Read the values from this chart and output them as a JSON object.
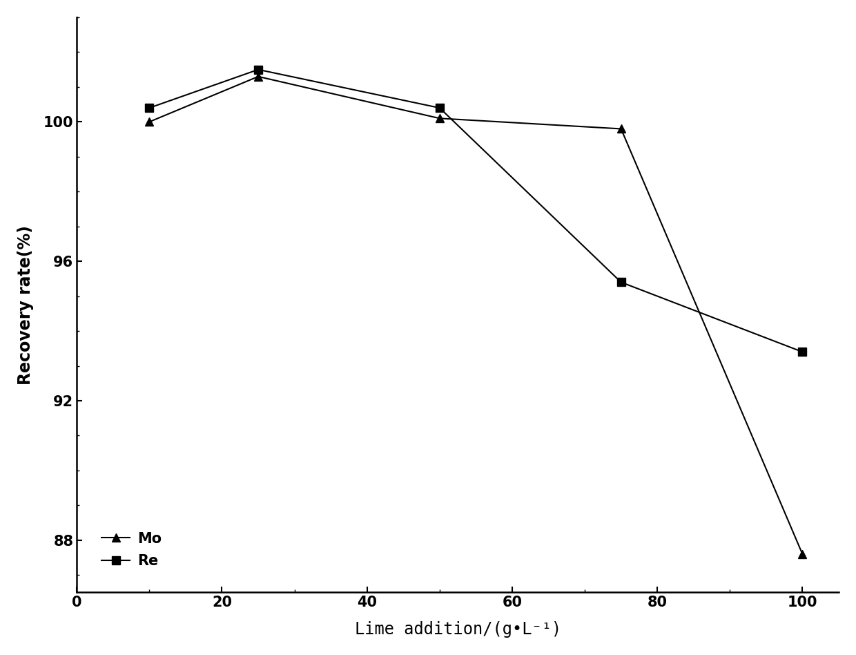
{
  "Mo_x": [
    10,
    25,
    50,
    75,
    100
  ],
  "Mo_y": [
    100.0,
    101.3,
    100.1,
    99.8,
    87.6
  ],
  "Re_x": [
    10,
    25,
    50,
    75,
    100
  ],
  "Re_y": [
    100.4,
    101.5,
    100.4,
    95.4,
    93.4
  ],
  "xlabel": "Lime addition/(g•L⁻¹)",
  "ylabel": "Recovery rate(%)",
  "xlim": [
    0,
    105
  ],
  "ylim": [
    86.5,
    103.0
  ],
  "yticks": [
    88,
    92,
    96,
    100
  ],
  "xticks": [
    0,
    20,
    40,
    60,
    80,
    100
  ],
  "Mo_label": "Mo",
  "Re_label": "Re",
  "line_color": "#000000",
  "marker_Mo": "^",
  "marker_Re": "s",
  "markersize": 9,
  "linewidth": 1.5,
  "legend_fontsize": 15,
  "axis_label_fontsize": 17,
  "tick_fontsize": 15,
  "figsize": [
    12.4,
    9.48
  ],
  "dpi": 100
}
